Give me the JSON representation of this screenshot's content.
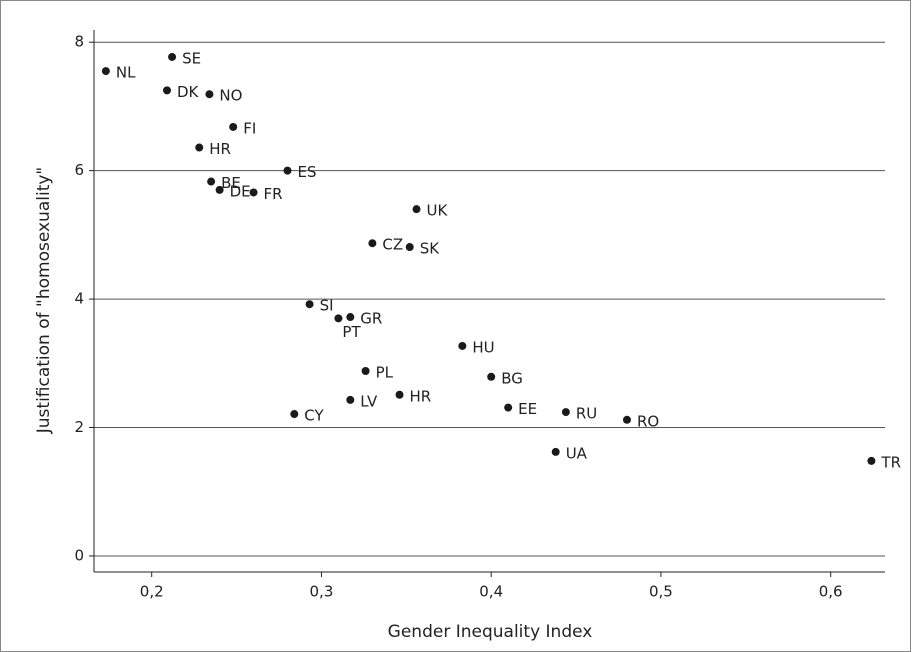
{
  "chart_data": {
    "type": "scatter",
    "x_label": "Gender Inequality Index",
    "y_label": "Justification of \"homosexuality\"",
    "labels": [
      "NL",
      "SE",
      "DK",
      "NO",
      "FI",
      "HR",
      "ES",
      "BE",
      "DE",
      "FR",
      "UK",
      "CZ",
      "SK",
      "SI",
      "GR",
      "PT",
      "HU",
      "PL",
      "BG",
      "LV",
      "HR",
      "EE",
      "RU",
      "RO",
      "CY",
      "UA",
      "TR"
    ],
    "x": [
      0.173,
      0.212,
      0.209,
      0.234,
      0.248,
      0.228,
      0.28,
      0.235,
      0.24,
      0.26,
      0.356,
      0.33,
      0.352,
      0.293,
      0.317,
      0.31,
      0.383,
      0.326,
      0.4,
      0.317,
      0.346,
      0.41,
      0.444,
      0.48,
      0.284,
      0.438,
      0.624
    ],
    "series": [
      {
        "color": "#1a1a1a",
        "values": [
          7.55,
          7.77,
          7.25,
          7.19,
          6.68,
          6.36,
          6.0,
          5.83,
          5.7,
          5.66,
          5.4,
          4.87,
          4.81,
          3.92,
          3.72,
          3.7,
          3.27,
          2.88,
          2.79,
          2.43,
          2.51,
          2.31,
          2.24,
          2.12,
          2.21,
          1.62,
          1.48
        ]
      }
    ],
    "xlim": [
      0.166,
      0.632
    ],
    "ylim": [
      -0.25,
      8.19
    ],
    "xticks": [
      {
        "value": 0.2,
        "label": "0,2"
      },
      {
        "value": 0.3,
        "label": "0,3"
      },
      {
        "value": 0.4,
        "label": "0,4"
      },
      {
        "value": 0.5,
        "label": "0,5"
      },
      {
        "value": 0.6,
        "label": "0,6"
      }
    ],
    "yticks": [
      0,
      2,
      4,
      6,
      8
    ],
    "grid": true
  }
}
